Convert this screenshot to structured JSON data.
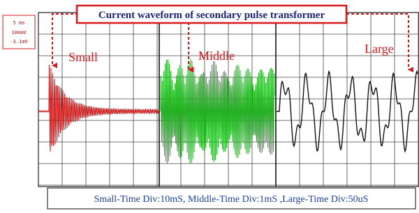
{
  "title": "Current waveform of secondary pulse transformer",
  "scope_labels": [
    "5 ms",
    "100mV",
    "-3.1mV"
  ],
  "panels": [
    {
      "label": "Small"
    },
    {
      "label": "Middle"
    },
    {
      "label": "Large"
    }
  ],
  "caption": "Small-Time Div:10mS, Middle-Time Div:1mS ,Large-Time Div:50uS"
}
